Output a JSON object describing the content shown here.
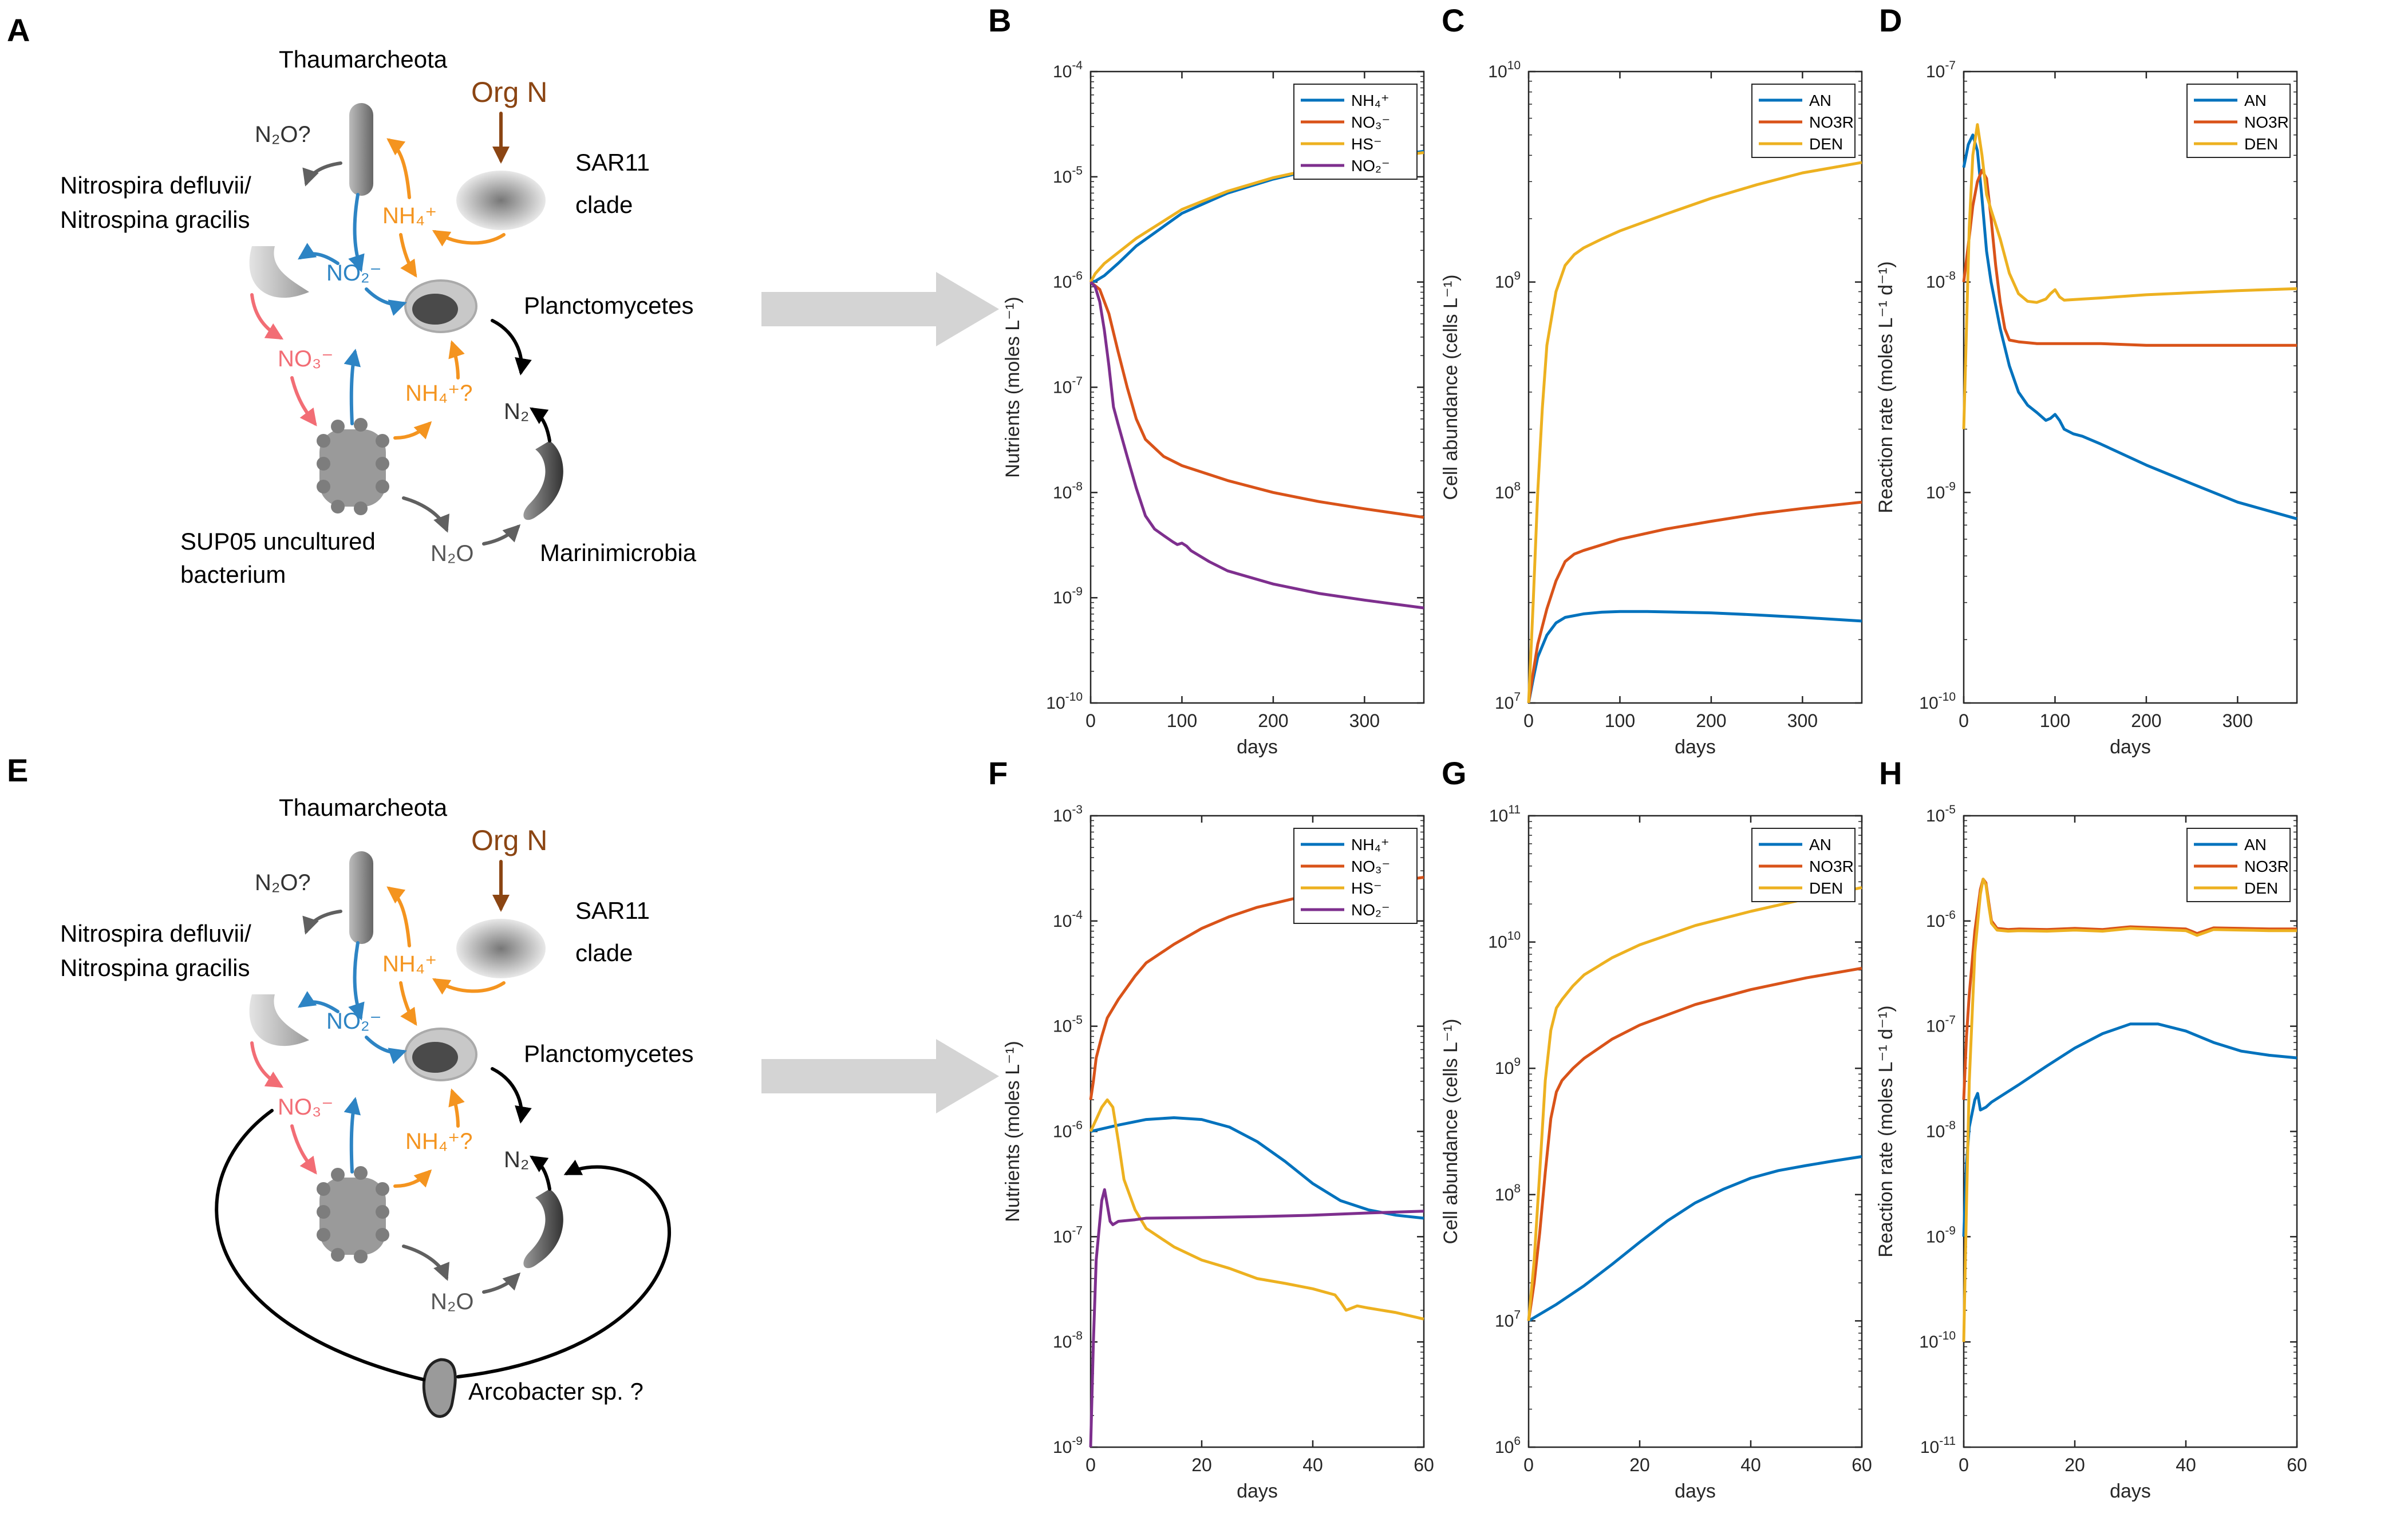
{
  "panel_letters": {
    "A": "A",
    "B": "B",
    "C": "C",
    "D": "D",
    "E": "E",
    "F": "F",
    "G": "G",
    "H": "H"
  },
  "diagram": {
    "thaum": "Thaumarcheota",
    "orgN": "Org N",
    "sar11_1": "SAR11",
    "sar11_2": "clade",
    "nitro1": "Nitrospira defluvii/",
    "nitro2": "Nitrospina gracilis",
    "plancto": "Planctomycetes",
    "sup05_1": "SUP05 uncultured",
    "sup05_2": "bacterium",
    "marini": "Marinimicrobia",
    "arco": "Arcobacter sp. ?",
    "n2o_q": "N₂O?",
    "nh4": "NH₄⁺",
    "no2": "NO₂⁻",
    "no3": "NO₃⁻",
    "nh4_q": "NH₄⁺?",
    "n2": "N₂",
    "n2o": "N₂O"
  },
  "colors": {
    "blue": "#2d84c4",
    "orange": "#f4941f",
    "red": "#f26d75",
    "brown": "#8b4513",
    "gray": "#606060",
    "dark": "#000000",
    "arrow_fill": "#d4d4d4",
    "s_blue": "#0072bd",
    "s_red": "#d95319",
    "s_yellow": "#edb120",
    "s_purple": "#7e2f8e"
  },
  "chart_data": [
    {
      "id": "B",
      "type": "line",
      "ylabel": "Nutrients (moles L⁻¹)",
      "xlabel": "days",
      "xlim": [
        0,
        365
      ],
      "xticks": [
        0,
        100,
        200,
        300
      ],
      "ylim_exp": [
        -10,
        -4
      ],
      "legend": [
        "NH₄⁺",
        "NO₃⁻",
        "HS⁻",
        "NO₂⁻"
      ],
      "series": [
        {
          "name": "NH4+",
          "color": "#0072bd",
          "x": [
            0,
            5,
            15,
            30,
            50,
            100,
            150,
            200,
            250,
            300,
            365
          ],
          "y": [
            1e-06,
            1.02e-06,
            1.15e-06,
            1.5e-06,
            2.2e-06,
            4.5e-06,
            7e-06,
            9.5e-06,
            1.2e-05,
            1.45e-05,
            1.75e-05
          ]
        },
        {
          "name": "NO3-",
          "color": "#d95319",
          "x": [
            0,
            10,
            20,
            30,
            40,
            50,
            60,
            80,
            100,
            150,
            200,
            250,
            300,
            365
          ],
          "y": [
            1e-06,
            8.5e-07,
            5e-07,
            2.2e-07,
            1e-07,
            5e-08,
            3.2e-08,
            2.2e-08,
            1.8e-08,
            1.3e-08,
            1e-08,
            8.2e-09,
            7e-09,
            5.8e-09
          ]
        },
        {
          "name": "HS-",
          "color": "#edb120",
          "x": [
            0,
            5,
            15,
            30,
            50,
            100,
            150,
            200,
            250,
            300,
            365
          ],
          "y": [
            1e-06,
            1.2e-06,
            1.5e-06,
            1.9e-06,
            2.6e-06,
            4.9e-06,
            7.3e-06,
            9.8e-06,
            1.22e-05,
            1.45e-05,
            1.7e-05
          ]
        },
        {
          "name": "NO2-",
          "color": "#7e2f8e",
          "x": [
            0,
            5,
            10,
            15,
            20,
            25,
            30,
            40,
            50,
            60,
            70,
            80,
            90,
            95,
            100,
            105,
            110,
            130,
            150,
            200,
            250,
            300,
            365
          ],
          "y": [
            1e-06,
            9e-07,
            6.5e-07,
            3.5e-07,
            1.6e-07,
            6.5e-08,
            4.5e-08,
            2.2e-08,
            1.1e-08,
            6e-09,
            4.5e-09,
            3.9e-09,
            3.4e-09,
            3.2e-09,
            3.3e-09,
            3.1e-09,
            2.8e-09,
            2.2e-09,
            1.8e-09,
            1.35e-09,
            1.1e-09,
            9.5e-10,
            8e-10
          ]
        }
      ]
    },
    {
      "id": "C",
      "type": "line",
      "ylabel": "Cell abundance (cells L⁻¹)",
      "xlabel": "days",
      "xlim": [
        0,
        365
      ],
      "xticks": [
        0,
        100,
        200,
        300
      ],
      "ylim_exp": [
        7,
        10
      ],
      "legend": [
        "AN",
        "NO3R",
        "DEN"
      ],
      "series": [
        {
          "name": "AN",
          "color": "#0072bd",
          "x": [
            0,
            5,
            10,
            20,
            30,
            40,
            60,
            80,
            100,
            130,
            200,
            250,
            300,
            365
          ],
          "y": [
            10000000.0,
            13000000.0,
            16500000.0,
            21000000.0,
            24000000.0,
            25500000.0,
            26500000.0,
            27000000.0,
            27200000.0,
            27200000.0,
            26800000.0,
            26200000.0,
            25500000.0,
            24500000.0
          ]
        },
        {
          "name": "NO3R",
          "color": "#d95319",
          "x": [
            0,
            5,
            10,
            20,
            30,
            40,
            50,
            60,
            100,
            150,
            200,
            250,
            300,
            365
          ],
          "y": [
            10000000.0,
            14000000.0,
            19000000.0,
            28000000.0,
            38000000.0,
            47000000.0,
            51000000.0,
            53000000.0,
            60000000.0,
            67000000.0,
            73000000.0,
            79000000.0,
            84000000.0,
            90000000.0
          ]
        },
        {
          "name": "DEN",
          "color": "#edb120",
          "x": [
            0,
            5,
            10,
            15,
            20,
            30,
            40,
            50,
            60,
            80,
            100,
            150,
            200,
            250,
            300,
            365
          ],
          "y": [
            10000000.0,
            30000000.0,
            100000000.0,
            250000000.0,
            500000000.0,
            900000000.0,
            1200000000.0,
            1350000000.0,
            1450000000.0,
            1600000000.0,
            1750000000.0,
            2100000000.0,
            2500000000.0,
            2900000000.0,
            3300000000.0,
            3700000000.0
          ]
        }
      ]
    },
    {
      "id": "D",
      "type": "line",
      "ylabel": "Reaction rate (moles L⁻¹ d⁻¹)",
      "xlabel": "days",
      "xlim": [
        0,
        365
      ],
      "xticks": [
        0,
        100,
        200,
        300
      ],
      "ylim_exp": [
        -10,
        -7
      ],
      "legend": [
        "AN",
        "NO3R",
        "DEN"
      ],
      "series": [
        {
          "name": "AN",
          "color": "#0072bd",
          "x": [
            0,
            5,
            10,
            15,
            20,
            25,
            30,
            40,
            50,
            60,
            70,
            80,
            90,
            95,
            100,
            105,
            110,
            120,
            130,
            150,
            200,
            250,
            300,
            365
          ],
          "y": [
            3.5e-08,
            4.5e-08,
            5e-08,
            4.2e-08,
            2.5e-08,
            1.4e-08,
            1e-08,
            6e-09,
            4e-09,
            3e-09,
            2.6e-09,
            2.4e-09,
            2.2e-09,
            2.25e-09,
            2.35e-09,
            2.2e-09,
            2e-09,
            1.9e-09,
            1.85e-09,
            1.7e-09,
            1.35e-09,
            1.1e-09,
            9e-10,
            7.5e-10
          ]
        },
        {
          "name": "NO3R",
          "color": "#d95319",
          "x": [
            0,
            5,
            10,
            15,
            20,
            25,
            30,
            35,
            40,
            45,
            50,
            60,
            80,
            100,
            150,
            200,
            250,
            300,
            365
          ],
          "y": [
            1e-08,
            1.5e-08,
            2.3e-08,
            3e-08,
            3.4e-08,
            3.1e-08,
            2e-08,
            1.2e-08,
            8e-09,
            6e-09,
            5.3e-09,
            5.2e-09,
            5.1e-09,
            5.1e-09,
            5.1e-09,
            5e-09,
            5e-09,
            5e-09,
            5e-09
          ]
        },
        {
          "name": "DEN",
          "color": "#edb120",
          "x": [
            0,
            3,
            6,
            10,
            15,
            20,
            25,
            30,
            40,
            50,
            60,
            70,
            80,
            90,
            95,
            100,
            105,
            110,
            130,
            150,
            200,
            250,
            300,
            365
          ],
          "y": [
            2e-09,
            6e-09,
            1.8e-08,
            4e-08,
            5.6e-08,
            4e-08,
            2.6e-08,
            2.2e-08,
            1.6e-08,
            1.1e-08,
            8.8e-09,
            8.1e-09,
            8e-09,
            8.3e-09,
            8.8e-09,
            9.2e-09,
            8.5e-09,
            8.2e-09,
            8.3e-09,
            8.4e-09,
            8.7e-09,
            8.9e-09,
            9.1e-09,
            9.3e-09
          ]
        }
      ]
    },
    {
      "id": "F",
      "type": "line",
      "ylabel": "Nutrients (moles L⁻¹)",
      "xlabel": "days",
      "xlim": [
        0,
        60
      ],
      "xticks": [
        0,
        20,
        40,
        60
      ],
      "ylim_exp": [
        -9,
        -3
      ],
      "legend": [
        "NH₄⁺",
        "NO₃⁻",
        "HS⁻",
        "NO₂⁻"
      ],
      "series": [
        {
          "name": "NH4+",
          "color": "#0072bd",
          "x": [
            0,
            5,
            10,
            15,
            20,
            25,
            30,
            35,
            40,
            45,
            50,
            55,
            60
          ],
          "y": [
            1e-06,
            1.15e-06,
            1.3e-06,
            1.35e-06,
            1.3e-06,
            1.1e-06,
            8e-07,
            5.2e-07,
            3.2e-07,
            2.2e-07,
            1.8e-07,
            1.6e-07,
            1.5e-07
          ]
        },
        {
          "name": "NO3-",
          "color": "#d95319",
          "x": [
            0,
            0.5,
            1,
            2,
            3,
            5,
            8,
            10,
            15,
            20,
            25,
            30,
            40,
            50,
            60
          ],
          "y": [
            2e-06,
            3e-06,
            5e-06,
            8e-06,
            1.2e-05,
            1.8e-05,
            3e-05,
            4e-05,
            6e-05,
            8.5e-05,
            0.00011,
            0.000135,
            0.00018,
            0.00022,
            0.00026
          ]
        },
        {
          "name": "HS-",
          "color": "#edb120",
          "x": [
            0,
            1,
            2,
            3,
            4,
            5,
            6,
            8,
            10,
            15,
            20,
            25,
            30,
            35,
            40,
            44,
            45,
            46,
            48,
            50,
            55,
            60
          ],
          "y": [
            1e-06,
            1.3e-06,
            1.7e-06,
            2e-06,
            1.7e-06,
            8e-07,
            3.5e-07,
            1.8e-07,
            1.2e-07,
            8e-08,
            6e-08,
            5e-08,
            4e-08,
            3.6e-08,
            3.2e-08,
            2.8e-08,
            2.4e-08,
            2e-08,
            2.2e-08,
            2.1e-08,
            1.9e-08,
            1.65e-08
          ]
        },
        {
          "name": "NO2-",
          "color": "#7e2f8e",
          "x": [
            0,
            0.5,
            1,
            2,
            2.5,
            3,
            3.5,
            4,
            5,
            8,
            10,
            20,
            30,
            40,
            50,
            60
          ],
          "y": [
            1e-09,
            1e-08,
            6e-08,
            2.2e-07,
            2.8e-07,
            2e-07,
            1.4e-07,
            1.3e-07,
            1.4e-07,
            1.45e-07,
            1.5e-07,
            1.52e-07,
            1.55e-07,
            1.6e-07,
            1.68e-07,
            1.75e-07
          ]
        }
      ]
    },
    {
      "id": "G",
      "type": "line",
      "ylabel": "Cell abundance (cells L⁻¹)",
      "xlabel": "days",
      "xlim": [
        0,
        60
      ],
      "xticks": [
        0,
        20,
        40,
        60
      ],
      "ylim_exp": [
        6,
        11
      ],
      "legend": [
        "AN",
        "NO3R",
        "DEN"
      ],
      "series": [
        {
          "name": "AN",
          "color": "#0072bd",
          "x": [
            0,
            5,
            10,
            15,
            20,
            25,
            30,
            35,
            40,
            45,
            50,
            55,
            60
          ],
          "y": [
            10000000.0,
            13500000.0,
            19000000.0,
            28000000.0,
            42000000.0,
            62000000.0,
            86000000.0,
            110000000.0,
            135000000.0,
            155000000.0,
            170000000.0,
            185000000.0,
            200000000.0
          ]
        },
        {
          "name": "NO3R",
          "color": "#d95319",
          "x": [
            0,
            1,
            2,
            3,
            4,
            5,
            6,
            8,
            10,
            15,
            20,
            30,
            40,
            50,
            60
          ],
          "y": [
            10000000.0,
            20000000.0,
            50000000.0,
            150000000.0,
            400000000.0,
            650000000.0,
            800000000.0,
            1000000000.0,
            1200000000.0,
            1700000000.0,
            2200000000.0,
            3200000000.0,
            4200000000.0,
            5200000000.0,
            6200000000.0
          ]
        },
        {
          "name": "DEN",
          "color": "#edb120",
          "x": [
            0,
            1,
            2,
            3,
            4,
            5,
            6,
            8,
            10,
            15,
            20,
            30,
            40,
            50,
            60
          ],
          "y": [
            10000000.0,
            30000000.0,
            150000000.0,
            800000000.0,
            2000000000.0,
            3000000000.0,
            3500000000.0,
            4500000000.0,
            5500000000.0,
            7500000000.0,
            9500000000.0,
            13500000000.0,
            17500000000.0,
            22000000000.0,
            27000000000.0
          ]
        }
      ]
    },
    {
      "id": "H",
      "type": "line",
      "ylabel": "Reaction rate (moles L⁻¹ d⁻¹)",
      "xlabel": "days",
      "xlim": [
        0,
        60
      ],
      "xticks": [
        0,
        20,
        40,
        60
      ],
      "ylim_exp": [
        -11,
        -5
      ],
      "legend": [
        "AN",
        "NO3R",
        "DEN"
      ],
      "series": [
        {
          "name": "AN",
          "color": "#0072bd",
          "x": [
            0,
            0.5,
            1,
            2,
            2.5,
            3,
            4,
            5,
            10,
            15,
            20,
            25,
            30,
            35,
            40,
            45,
            50,
            55,
            60
          ],
          "y": [
            1e-09,
            5e-09,
            1.1e-08,
            2e-08,
            2.3e-08,
            1.6e-08,
            1.7e-08,
            1.9e-08,
            2.8e-08,
            4.2e-08,
            6.2e-08,
            8.5e-08,
            1.05e-07,
            1.05e-07,
            9e-08,
            7e-08,
            5.8e-08,
            5.3e-08,
            5e-08
          ]
        },
        {
          "name": "NO3R",
          "color": "#d95319",
          "x": [
            0,
            0.5,
            1,
            2,
            3,
            3.5,
            4,
            4.5,
            5,
            6,
            8,
            10,
            15,
            20,
            25,
            30,
            35,
            40,
            41,
            42,
            45,
            50,
            55,
            60
          ],
          "y": [
            2e-08,
            8e-08,
            2e-07,
            8e-07,
            2e-06,
            2.5e-06,
            2.3e-06,
            1.5e-06,
            1e-06,
            8.5e-07,
            8.3e-07,
            8.4e-07,
            8.3e-07,
            8.5e-07,
            8.3e-07,
            8.8e-07,
            8.6e-07,
            8.4e-07,
            8e-07,
            7.6e-07,
            8.6e-07,
            8.5e-07,
            8.4e-07,
            8.4e-07
          ]
        },
        {
          "name": "DEN",
          "color": "#edb120",
          "x": [
            0,
            0.5,
            1,
            2,
            3,
            3.5,
            4,
            4.5,
            5,
            6,
            8,
            10,
            15,
            20,
            25,
            30,
            35,
            40,
            41,
            42,
            45,
            50,
            55,
            60
          ],
          "y": [
            1e-10,
            2e-09,
            3e-08,
            5e-07,
            1.8e-06,
            2.5e-06,
            2.2e-06,
            1.4e-06,
            9.5e-07,
            8.2e-07,
            8e-07,
            8.1e-07,
            8e-07,
            8.2e-07,
            8e-07,
            8.5e-07,
            8.3e-07,
            8.1e-07,
            7.7e-07,
            7.3e-07,
            8.3e-07,
            8.2e-07,
            8.1e-07,
            8.1e-07
          ]
        }
      ]
    }
  ]
}
